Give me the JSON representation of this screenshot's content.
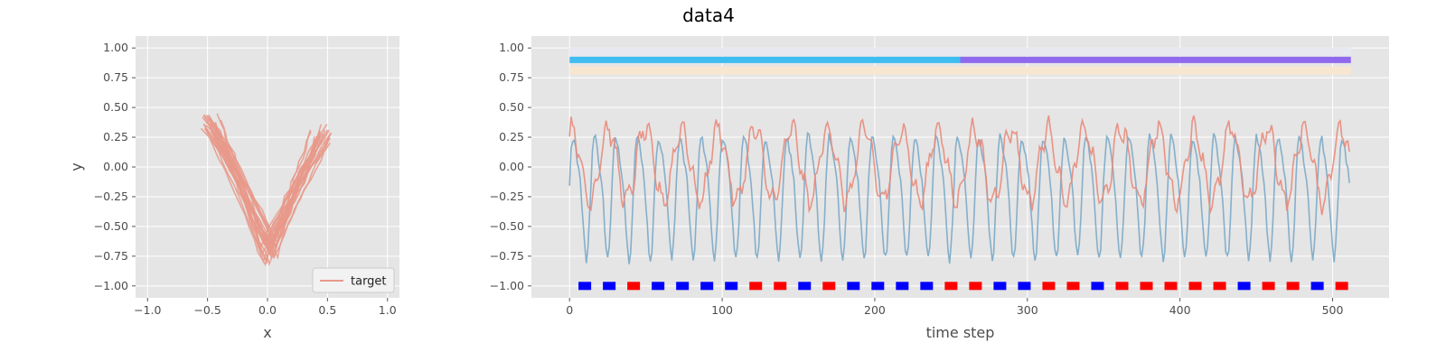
{
  "figure": {
    "title": "data4"
  },
  "chart_data": [
    {
      "type": "line",
      "title": "",
      "xlabel": "x",
      "ylabel": "y",
      "xlim": [
        -1.1,
        1.1
      ],
      "ylim": [
        -1.1,
        1.1
      ],
      "xticks": [
        "−1.0",
        "−0.5",
        "0.0",
        "0.5",
        "1.0"
      ],
      "yticks": [
        "−1.00",
        "−0.75",
        "−0.50",
        "−0.25",
        "0.00",
        "0.25",
        "0.50",
        "0.75",
        "1.00"
      ],
      "grid": true,
      "legend": {
        "placement": "lower-right",
        "entries": [
          "target"
        ]
      },
      "series": [
        {
          "name": "target",
          "color": "#E8998A",
          "shape": "v-trajectories",
          "left_arm_top": [
            -0.55,
            0.36
          ],
          "right_arm_top": [
            0.55,
            0.35
          ],
          "bottom": [
            0.0,
            -0.8
          ],
          "cycles": 24
        }
      ]
    },
    {
      "type": "line",
      "title": "",
      "xlabel": "time step",
      "ylabel": "",
      "xlim": [
        -25,
        537
      ],
      "ylim": [
        -1.1,
        1.1
      ],
      "xticks": [
        "0",
        "100",
        "200",
        "300",
        "400",
        "500"
      ],
      "yticks": [
        "−1.00",
        "−0.75",
        "−0.50",
        "−0.25",
        "0.00",
        "0.25",
        "0.50",
        "0.75",
        "1.00"
      ],
      "grid": true,
      "series": [
        {
          "color": "#E8897A",
          "kind": "signal",
          "range": [
            -0.55,
            0.57
          ],
          "n": 512
        },
        {
          "color": "#7AA8C8",
          "kind": "signal",
          "range": [
            -0.82,
            0.45
          ],
          "n": 512,
          "period_steps": 14
        }
      ],
      "bars": [
        {
          "y": 0.97,
          "color": "#E8E8F2",
          "segments": [
            [
              0,
              512
            ]
          ]
        },
        {
          "y": 0.9,
          "color": "#3FBCF2",
          "segments": [
            [
              0,
              256
            ]
          ]
        },
        {
          "y": 0.9,
          "color": "#9169EE",
          "segments": [
            [
              256,
              512
            ]
          ]
        },
        {
          "y": 0.81,
          "color": "#F7E6D0",
          "segments": [
            [
              0,
              512
            ]
          ]
        }
      ],
      "markers": {
        "y": -1.0,
        "x": [
          10,
          26,
          42,
          58,
          74,
          90,
          106,
          122,
          138,
          154,
          170,
          186,
          202,
          218,
          234,
          250,
          266,
          282,
          298,
          314,
          330,
          346,
          362,
          378,
          394,
          410,
          426,
          442,
          458,
          474,
          490,
          506
        ],
        "colors": [
          "#0000FF",
          "#0000FF",
          "#FF0000",
          "#0000FF",
          "#0000FF",
          "#0000FF",
          "#0000FF",
          "#FF0000",
          "#FF0000",
          "#0000FF",
          "#FF0000",
          "#0000FF",
          "#0000FF",
          "#0000FF",
          "#0000FF",
          "#FF0000",
          "#FF0000",
          "#0000FF",
          "#0000FF",
          "#FF0000",
          "#FF0000",
          "#0000FF",
          "#FF0000",
          "#FF0000",
          "#FF0000",
          "#FF0000",
          "#FF0000",
          "#0000FF",
          "#FF0000",
          "#FF0000",
          "#0000FF",
          "#FF0000"
        ]
      }
    }
  ]
}
